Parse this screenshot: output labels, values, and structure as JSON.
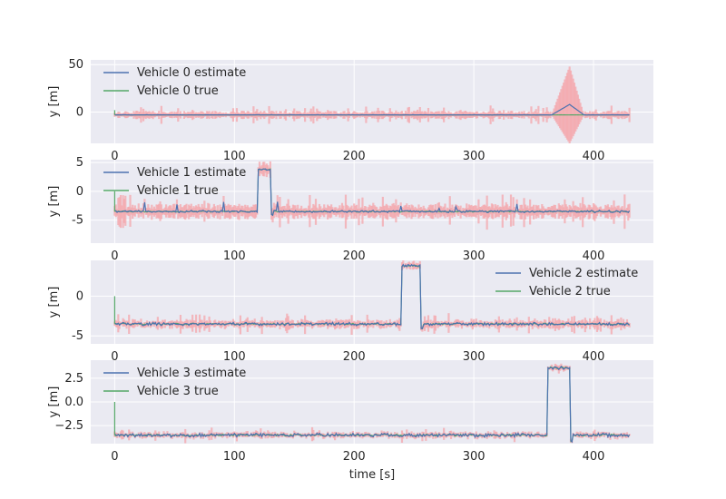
{
  "figure": {
    "xlabel": "time [s]",
    "background": "#ffffff",
    "axes_background": "#eaeaf2",
    "grid_color": "#ffffff",
    "estimate_color": "#4c72b0",
    "true_color": "#55a868",
    "band_color": "#f4a6ab"
  },
  "chart_data": [
    {
      "type": "line",
      "ylabel": "y [m]",
      "xlim": [
        -20,
        450
      ],
      "ylim": [
        -33,
        55
      ],
      "xticks": [
        0,
        100,
        200,
        300,
        400
      ],
      "yticks": [
        0,
        50
      ],
      "legend_position": "upper-left",
      "series": [
        {
          "name": "Vehicle 0 estimate",
          "color": "#4c72b0"
        },
        {
          "name": "Vehicle 0 true",
          "color": "#55a868"
        }
      ],
      "event": {
        "type": "divergence",
        "start": 365,
        "peak": 380,
        "end": 392,
        "peak_value": 8,
        "band_upper": 48,
        "band_lower": -33
      },
      "baseline": -3,
      "noise_band": 4
    },
    {
      "type": "line",
      "ylabel": "y [m]",
      "xlim": [
        -20,
        450
      ],
      "ylim": [
        -9,
        5.5
      ],
      "xticks": [
        0,
        100,
        200,
        300,
        400
      ],
      "yticks": [
        5,
        0,
        -5
      ],
      "legend_position": "upper-left",
      "series": [
        {
          "name": "Vehicle 1 estimate",
          "color": "#4c72b0"
        },
        {
          "name": "Vehicle 1 true",
          "color": "#55a868"
        }
      ],
      "event": {
        "type": "step",
        "start": 120,
        "end": 130,
        "level": 3.8
      },
      "baseline": -3.5,
      "noise_band": 1.2
    },
    {
      "type": "line",
      "ylabel": "y [m]",
      "xlim": [
        -20,
        450
      ],
      "ylim": [
        -6,
        4.5
      ],
      "xticks": [
        0,
        100,
        200,
        300,
        400
      ],
      "yticks": [
        0,
        -5
      ],
      "legend_position": "upper-right",
      "series": [
        {
          "name": "Vehicle 2 estimate",
          "color": "#4c72b0"
        },
        {
          "name": "Vehicle 2 true",
          "color": "#55a868"
        }
      ],
      "event": {
        "type": "step",
        "start": 240,
        "end": 255,
        "level": 3.8
      },
      "baseline": -3.5,
      "noise_band": 0.5
    },
    {
      "type": "line",
      "ylabel": "y [m]",
      "xlim": [
        -20,
        450
      ],
      "ylim": [
        -4.4,
        4.4
      ],
      "xticks": [
        0,
        100,
        200,
        300,
        400
      ],
      "yticks": [
        2.5,
        0.0,
        -2.5
      ],
      "ytick_labels": [
        "2.5",
        "0.0",
        "−2.5"
      ],
      "legend_position": "upper-left",
      "series": [
        {
          "name": "Vehicle 3 estimate",
          "color": "#4c72b0"
        },
        {
          "name": "Vehicle 3 true",
          "color": "#55a868"
        }
      ],
      "event": {
        "type": "step",
        "start": 362,
        "end": 380,
        "level": 3.6
      },
      "baseline": -3.5,
      "noise_band": 0.3
    }
  ]
}
